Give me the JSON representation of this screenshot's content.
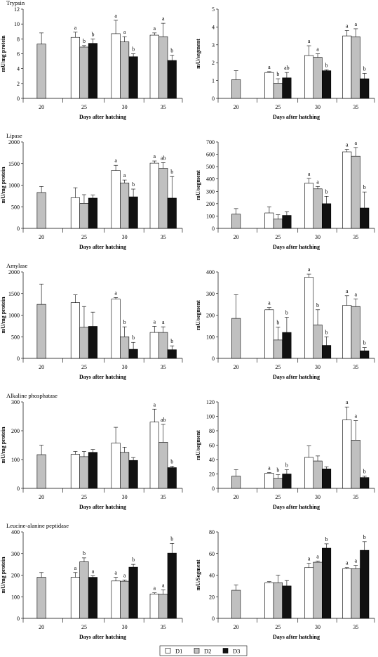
{
  "colors": {
    "D1": "#ffffff",
    "D2": "#c0c0c0",
    "D3": "#111111"
  },
  "legend": {
    "items": [
      "D1",
      "D2",
      "D3"
    ]
  },
  "chart_data": [
    {
      "type": "bar",
      "title": "Trypsin",
      "xlabel": "Days after hatching",
      "ylabel": "mU/mg protein",
      "categories": [
        "20",
        "25",
        "30",
        "35"
      ],
      "ylim": [
        0,
        12
      ],
      "yticks": [
        0,
        2,
        4,
        6,
        8,
        10,
        12
      ],
      "series": [
        {
          "name": "D1",
          "values": [
            null,
            8.2,
            8.7,
            8.5
          ],
          "errors": [
            null,
            0.7,
            1.8,
            0.3
          ],
          "labels": [
            null,
            "a",
            "a",
            "a"
          ]
        },
        {
          "name": "D2",
          "values": [
            7.3,
            6.9,
            7.6,
            8.3
          ],
          "errors": [
            1.5,
            0.2,
            0.7,
            1.8
          ],
          "labels": [
            null,
            "b",
            "a",
            "a"
          ]
        },
        {
          "name": "D3",
          "values": [
            null,
            7.4,
            5.6,
            5.1
          ],
          "errors": [
            null,
            0.6,
            0.4,
            0.7
          ],
          "labels": [
            null,
            "b",
            "b",
            "b"
          ]
        }
      ]
    },
    {
      "type": "bar",
      "title": "",
      "xlabel": "Days after hatching",
      "ylabel": "mU/segment",
      "categories": [
        "20",
        "25",
        "30",
        "35"
      ],
      "ylim": [
        0,
        5
      ],
      "yticks": [
        0,
        1,
        2,
        3,
        4,
        5
      ],
      "series": [
        {
          "name": "D1",
          "values": [
            null,
            1.45,
            2.4,
            3.5
          ],
          "errors": [
            null,
            0.05,
            0.55,
            0.3
          ],
          "labels": [
            null,
            "a",
            "a",
            "a"
          ]
        },
        {
          "name": "D2",
          "values": [
            1.05,
            0.85,
            2.3,
            3.45
          ],
          "errors": [
            0.5,
            0.25,
            0.2,
            0.45
          ],
          "labels": [
            null,
            "b",
            "a",
            "a"
          ]
        },
        {
          "name": "D3",
          "values": [
            null,
            1.15,
            1.55,
            1.1
          ],
          "errors": [
            null,
            0.3,
            0.05,
            0.3
          ],
          "labels": [
            null,
            "ab",
            "b",
            "b"
          ]
        }
      ]
    },
    {
      "type": "bar",
      "title": "Lipase",
      "xlabel": "Days after hatching",
      "ylabel": "mU/mg protein",
      "categories": [
        "20",
        "25",
        "30",
        "35"
      ],
      "ylim": [
        0,
        2000
      ],
      "yticks": [
        0,
        500,
        1000,
        1500,
        2000
      ],
      "series": [
        {
          "name": "D1",
          "values": [
            null,
            710,
            1340,
            1510
          ],
          "errors": [
            null,
            230,
            120,
            50
          ],
          "labels": [
            null,
            null,
            "a",
            "a"
          ]
        },
        {
          "name": "D2",
          "values": [
            830,
            580,
            1050,
            1390
          ],
          "errors": [
            140,
            200,
            70,
            130
          ],
          "labels": [
            null,
            null,
            "a",
            "ab"
          ]
        },
        {
          "name": "D3",
          "values": [
            null,
            700,
            730,
            700
          ],
          "errors": [
            null,
            70,
            180,
            500
          ],
          "labels": [
            null,
            null,
            "b",
            "b"
          ]
        }
      ]
    },
    {
      "type": "bar",
      "title": "",
      "xlabel": "Days after hatching",
      "ylabel": "mU/segment",
      "categories": [
        "20",
        "25",
        "30",
        "35"
      ],
      "ylim": [
        0,
        700
      ],
      "yticks": [
        0,
        100,
        200,
        300,
        400,
        500,
        600,
        700
      ],
      "series": [
        {
          "name": "D1",
          "values": [
            null,
            125,
            365,
            620
          ],
          "errors": [
            null,
            50,
            40,
            20
          ],
          "labels": [
            null,
            null,
            "a",
            "a"
          ]
        },
        {
          "name": "D2",
          "values": [
            115,
            75,
            320,
            585
          ],
          "errors": [
            45,
            35,
            20,
            70
          ],
          "labels": [
            null,
            null,
            "a",
            "a"
          ]
        },
        {
          "name": "D3",
          "values": [
            null,
            105,
            200,
            165
          ],
          "errors": [
            null,
            30,
            60,
            130
          ],
          "labels": [
            null,
            null,
            "b",
            "b"
          ]
        }
      ]
    },
    {
      "type": "bar",
      "title": "Amylase",
      "xlabel": "Days after hatching",
      "ylabel": "mU/mg protein",
      "categories": [
        "20",
        "25",
        "30",
        "35"
      ],
      "ylim": [
        0,
        2000
      ],
      "yticks": [
        0,
        500,
        1000,
        1500,
        2000
      ],
      "series": [
        {
          "name": "D1",
          "values": [
            null,
            1290,
            1370,
            600
          ],
          "errors": [
            null,
            180,
            40,
            140
          ],
          "labels": [
            null,
            null,
            "a",
            "a"
          ]
        },
        {
          "name": "D2",
          "values": [
            1250,
            720,
            500,
            600
          ],
          "errors": [
            470,
            480,
            230,
            130
          ],
          "labels": [
            null,
            null,
            "b",
            "a"
          ]
        },
        {
          "name": "D3",
          "values": [
            null,
            740,
            210,
            200
          ],
          "errors": [
            null,
            330,
            160,
            90
          ],
          "labels": [
            null,
            null,
            "b",
            "b"
          ]
        }
      ]
    },
    {
      "type": "bar",
      "title": "",
      "xlabel": "Days after hatching",
      "ylabel": "mU/segment",
      "categories": [
        "20",
        "25",
        "30",
        "35"
      ],
      "ylim": [
        0,
        400
      ],
      "yticks": [
        0,
        100,
        200,
        300,
        400
      ],
      "series": [
        {
          "name": "D1",
          "values": [
            null,
            225,
            375,
            245
          ],
          "errors": [
            null,
            10,
            15,
            45
          ],
          "labels": [
            null,
            "a",
            "a",
            "a"
          ]
        },
        {
          "name": "D2",
          "values": [
            185,
            85,
            155,
            240
          ],
          "errors": [
            110,
            60,
            70,
            35
          ],
          "labels": [
            null,
            "b",
            "b",
            "a"
          ]
        },
        {
          "name": "D3",
          "values": [
            null,
            120,
            60,
            35
          ],
          "errors": [
            null,
            70,
            40,
            15
          ],
          "labels": [
            null,
            "b",
            "b",
            "b"
          ]
        }
      ]
    },
    {
      "type": "bar",
      "title": "Alkaline phosphatase",
      "xlabel": "Days after hatching",
      "ylabel": "mU/mg protein",
      "categories": [
        "20",
        "25",
        "30",
        "35"
      ],
      "ylim": [
        0,
        300
      ],
      "yticks": [
        0,
        100,
        200,
        300
      ],
      "series": [
        {
          "name": "D1",
          "values": [
            null,
            118,
            157,
            230
          ],
          "errors": [
            null,
            10,
            55,
            45
          ],
          "labels": [
            null,
            null,
            null,
            "a"
          ]
        },
        {
          "name": "D2",
          "values": [
            117,
            110,
            125,
            160
          ],
          "errors": [
            33,
            18,
            18,
            62
          ],
          "labels": [
            null,
            null,
            null,
            "ab"
          ]
        },
        {
          "name": "D3",
          "values": [
            null,
            125,
            97,
            72
          ],
          "errors": [
            null,
            10,
            10,
            5
          ],
          "labels": [
            null,
            null,
            null,
            "b"
          ]
        }
      ]
    },
    {
      "type": "bar",
      "title": "",
      "xlabel": "Days after hatching",
      "ylabel": "mU/segment",
      "categories": [
        "20",
        "25",
        "30",
        "35"
      ],
      "ylim": [
        0,
        120
      ],
      "yticks": [
        0,
        20,
        40,
        60,
        80,
        100,
        120
      ],
      "series": [
        {
          "name": "D1",
          "values": [
            null,
            21,
            43,
            95
          ],
          "errors": [
            null,
            1,
            16,
            18
          ],
          "labels": [
            null,
            "a",
            null,
            "a"
          ]
        },
        {
          "name": "D2",
          "values": [
            17,
            14,
            38,
            67
          ],
          "errors": [
            9,
            5,
            7,
            27
          ],
          "labels": [
            null,
            "b",
            null,
            "a"
          ]
        },
        {
          "name": "D3",
          "values": [
            null,
            20,
            27,
            15
          ],
          "errors": [
            null,
            6,
            3,
            2
          ],
          "labels": [
            null,
            "b",
            null,
            "b"
          ]
        }
      ]
    },
    {
      "type": "bar",
      "title": "Leucine-alanine peptidase",
      "xlabel": "Days after hatching",
      "ylabel": "mU/mg protein",
      "categories": [
        "20",
        "25",
        "30",
        "35"
      ],
      "ylim": [
        0,
        400
      ],
      "yticks": [
        0,
        100,
        200,
        300,
        400
      ],
      "series": [
        {
          "name": "D1",
          "values": [
            null,
            190,
            173,
            113
          ],
          "errors": [
            null,
            22,
            17,
            5
          ],
          "labels": [
            null,
            "a",
            "a",
            "a"
          ]
        },
        {
          "name": "D2",
          "values": [
            190,
            262,
            172,
            112
          ],
          "errors": [
            22,
            18,
            5,
            20
          ],
          "labels": [
            null,
            "b",
            "a",
            "a"
          ]
        },
        {
          "name": "D3",
          "values": [
            null,
            190,
            237,
            302
          ],
          "errors": [
            null,
            7,
            13,
            45
          ],
          "labels": [
            null,
            "a",
            "b",
            "b"
          ]
        }
      ]
    },
    {
      "type": "bar",
      "title": "",
      "xlabel": "Days after hatching",
      "ylabel": "mU/Segment",
      "categories": [
        "20",
        "25",
        "30",
        "35"
      ],
      "ylim": [
        0,
        80
      ],
      "yticks": [
        0,
        20,
        40,
        60,
        80
      ],
      "series": [
        {
          "name": "D1",
          "values": [
            null,
            33,
            47,
            46
          ],
          "errors": [
            null,
            1,
            4,
            1
          ],
          "labels": [
            null,
            null,
            "a",
            "a"
          ]
        },
        {
          "name": "D2",
          "values": [
            26,
            33,
            52,
            46
          ],
          "errors": [
            5,
            7,
            1,
            3
          ],
          "labels": [
            null,
            null,
            "a",
            "a"
          ]
        },
        {
          "name": "D3",
          "values": [
            null,
            30,
            65,
            63
          ],
          "errors": [
            null,
            5,
            4,
            8
          ],
          "labels": [
            null,
            null,
            "b",
            "b"
          ]
        }
      ]
    }
  ]
}
